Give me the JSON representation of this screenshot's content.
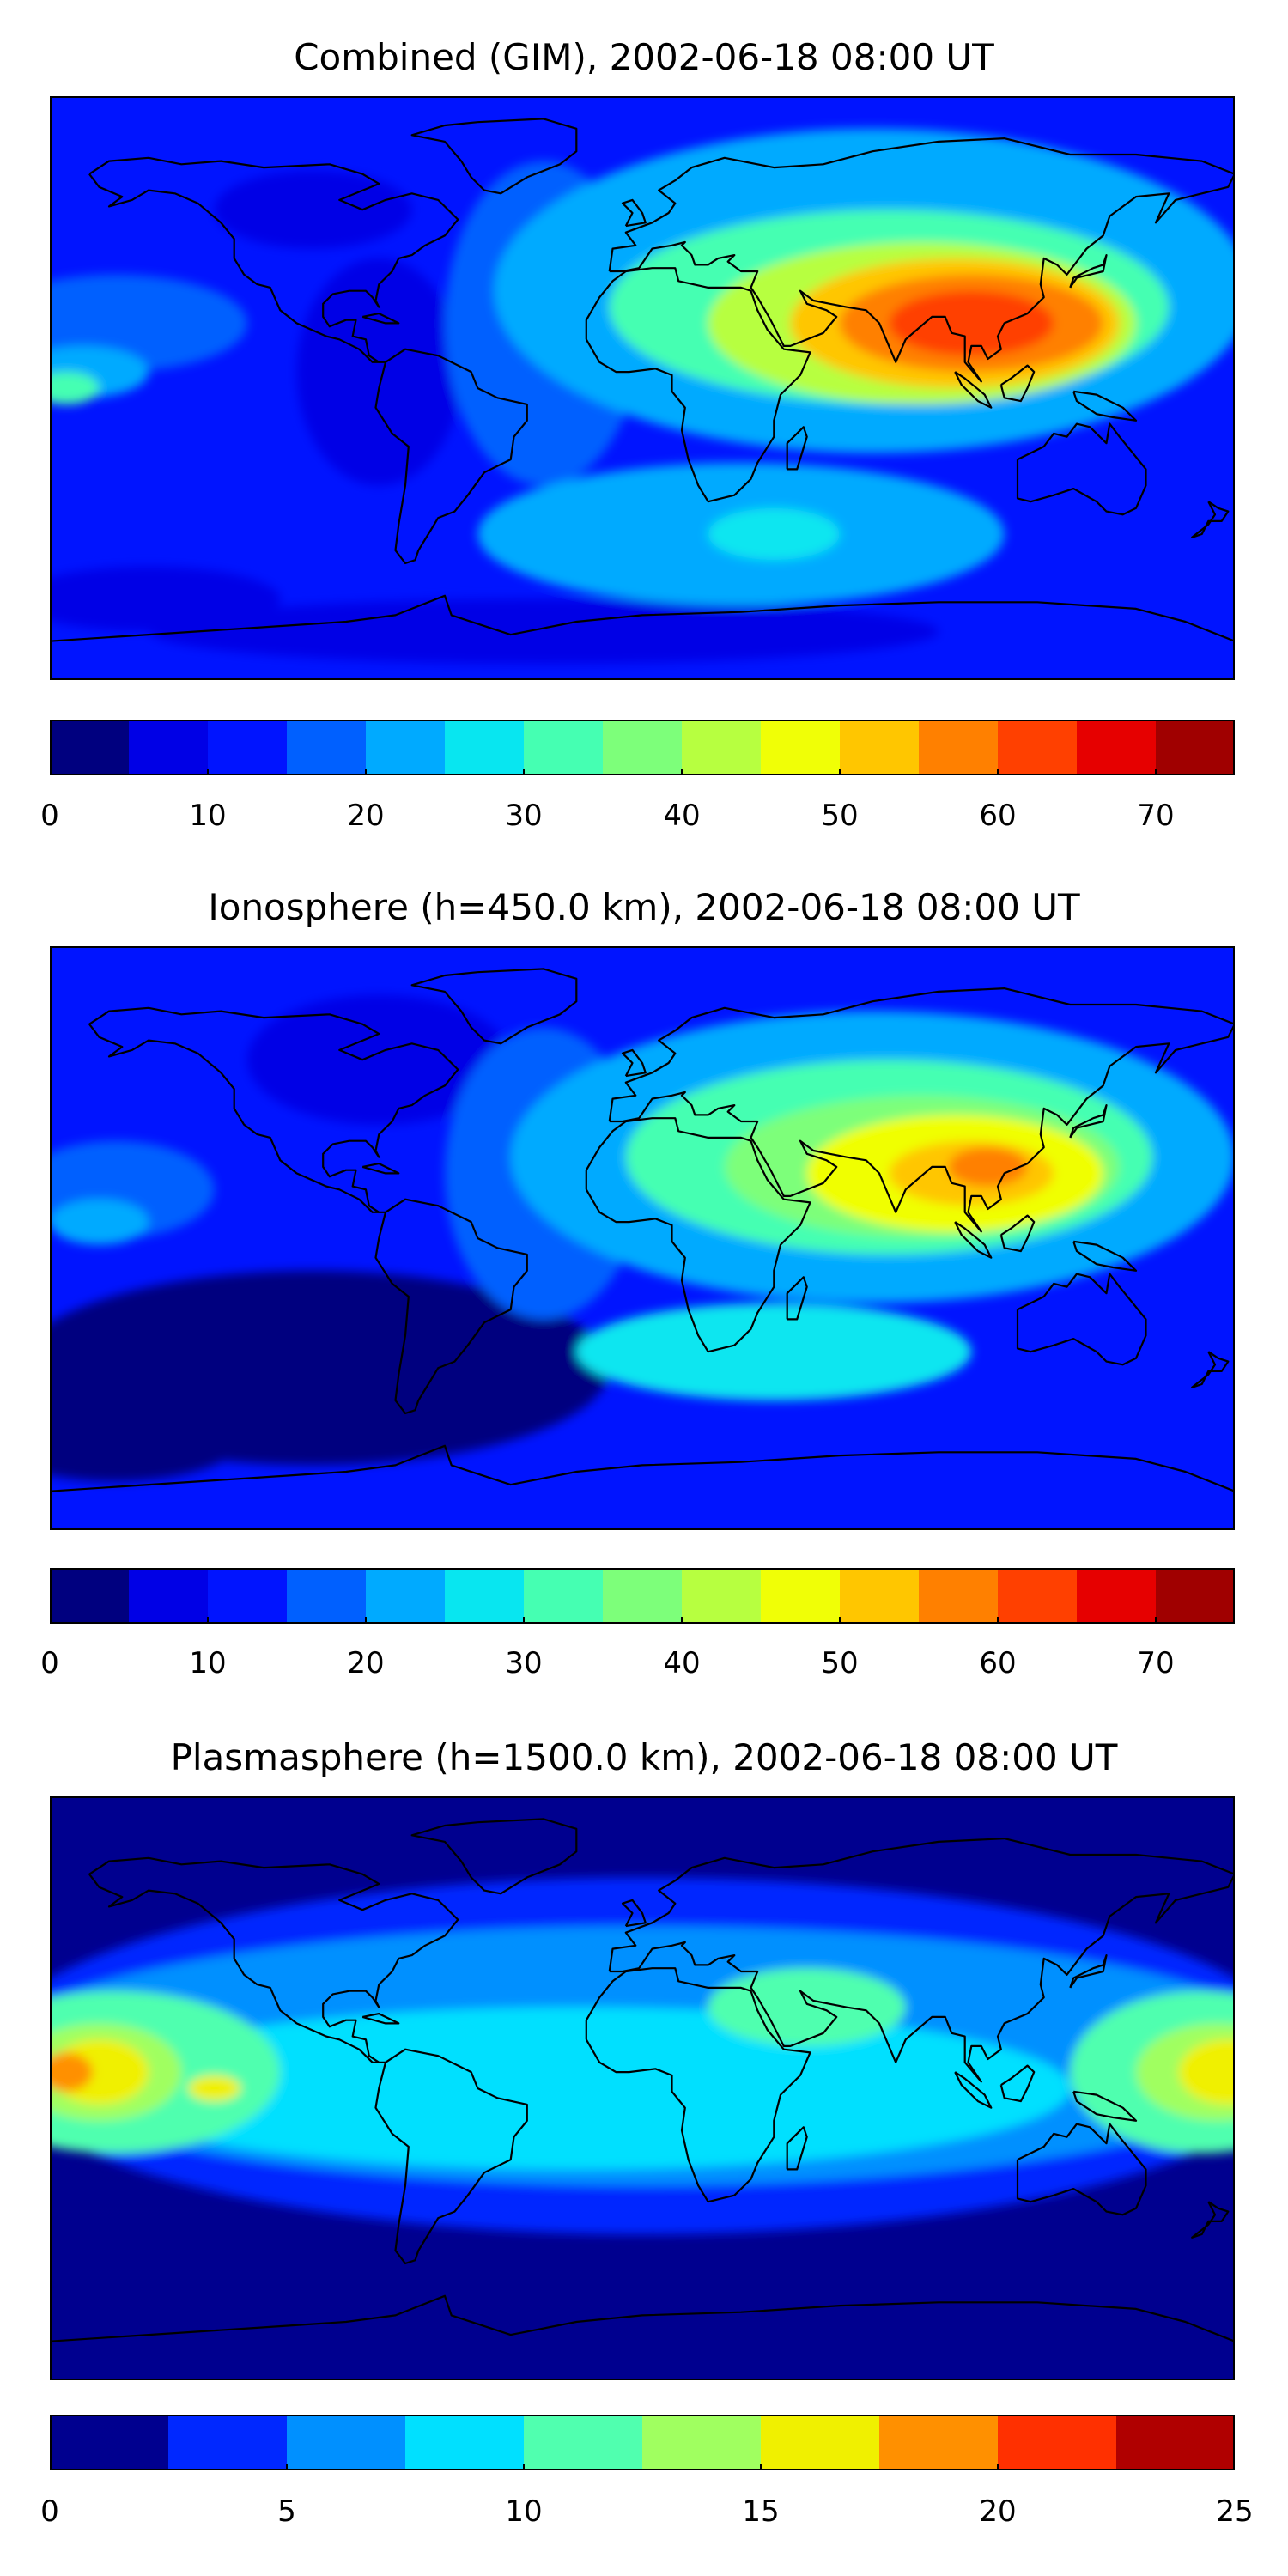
{
  "panels": [
    {
      "title": "Combined (GIM), 2002-06-18 08:00 UT",
      "colorbar": {
        "min": 0,
        "max": 75,
        "step": 5,
        "colors": [
          "#00007f",
          "#0000e6",
          "#0014ff",
          "#0060ff",
          "#00aaff",
          "#08e6f0",
          "#45ffb2",
          "#7dff7a",
          "#b7ff40",
          "#f0ff06",
          "#ffc600",
          "#ff8000",
          "#ff4000",
          "#e60000",
          "#a00000"
        ],
        "ticks": [
          "0",
          "10",
          "20",
          "30",
          "40",
          "50",
          "60",
          "70"
        ],
        "tick_values": [
          0,
          10,
          20,
          30,
          40,
          50,
          60,
          70
        ]
      },
      "field": {
        "background": "#0014ff",
        "blobs": [
          {
            "lon": -150,
            "lat": -65,
            "rx": 40,
            "ry": 10,
            "level": 1
          },
          {
            "lon": -30,
            "lat": -75,
            "rx": 120,
            "ry": 10,
            "level": 1
          },
          {
            "lon": -80,
            "lat": 5,
            "rx": 25,
            "ry": 35,
            "level": 1
          },
          {
            "lon": -100,
            "lat": 55,
            "rx": 30,
            "ry": 12,
            "level": 1
          },
          {
            "lon": -160,
            "lat": 20,
            "rx": 40,
            "ry": 15,
            "level": 3
          },
          {
            "lon": -170,
            "lat": 5,
            "rx": 20,
            "ry": 8,
            "level": 4
          },
          {
            "lon": -175,
            "lat": 0,
            "rx": 10,
            "ry": 5,
            "level": 6
          },
          {
            "lon": -30,
            "lat": 20,
            "rx": 30,
            "ry": 50,
            "level": 3
          },
          {
            "lon": 70,
            "lat": 30,
            "rx": 115,
            "ry": 50,
            "level": 4
          },
          {
            "lon": 30,
            "lat": -45,
            "rx": 80,
            "ry": 22,
            "level": 4
          },
          {
            "lon": 40,
            "lat": -45,
            "rx": 20,
            "ry": 8,
            "level": 5
          },
          {
            "lon": 75,
            "lat": 25,
            "rx": 85,
            "ry": 30,
            "level": 6
          },
          {
            "lon": 85,
            "lat": 20,
            "rx": 65,
            "ry": 25,
            "level": 8
          },
          {
            "lon": 95,
            "lat": 20,
            "rx": 50,
            "ry": 20,
            "level": 10
          },
          {
            "lon": 100,
            "lat": 20,
            "rx": 40,
            "ry": 15,
            "level": 11
          },
          {
            "lon": 100,
            "lat": 20,
            "rx": 25,
            "ry": 10,
            "level": 12
          }
        ]
      }
    },
    {
      "title": "Ionosphere  (h=450.0 km), 2002-06-18 08:00 UT",
      "colorbar": {
        "min": 0,
        "max": 75,
        "step": 5,
        "colors": [
          "#00007f",
          "#0000e6",
          "#0014ff",
          "#0060ff",
          "#00aaff",
          "#08e6f0",
          "#45ffb2",
          "#7dff7a",
          "#b7ff40",
          "#f0ff06",
          "#ffc600",
          "#ff8000",
          "#ff4000",
          "#e60000",
          "#a00000"
        ],
        "ticks": [
          "0",
          "10",
          "20",
          "30",
          "40",
          "50",
          "60",
          "70"
        ],
        "tick_values": [
          0,
          10,
          20,
          30,
          40,
          50,
          60,
          70
        ]
      },
      "field": {
        "background": "#0014ff",
        "blobs": [
          {
            "lon": -100,
            "lat": -40,
            "rx": 90,
            "ry": 30,
            "level": 0
          },
          {
            "lon": -160,
            "lat": -60,
            "rx": 40,
            "ry": 15,
            "level": 0
          },
          {
            "lon": -80,
            "lat": 55,
            "rx": 40,
            "ry": 20,
            "level": 1
          },
          {
            "lon": -160,
            "lat": 15,
            "rx": 30,
            "ry": 15,
            "level": 3
          },
          {
            "lon": -165,
            "lat": 5,
            "rx": 15,
            "ry": 7,
            "level": 4
          },
          {
            "lon": -30,
            "lat": 20,
            "rx": 30,
            "ry": 45,
            "level": 3
          },
          {
            "lon": 70,
            "lat": 25,
            "rx": 110,
            "ry": 45,
            "level": 4
          },
          {
            "lon": 40,
            "lat": -35,
            "rx": 60,
            "ry": 15,
            "level": 5
          },
          {
            "lon": 75,
            "lat": 25,
            "rx": 80,
            "ry": 30,
            "level": 6
          },
          {
            "lon": 85,
            "lat": 22,
            "rx": 60,
            "ry": 22,
            "level": 7
          },
          {
            "lon": 95,
            "lat": 20,
            "rx": 45,
            "ry": 18,
            "level": 9
          },
          {
            "lon": 100,
            "lat": 20,
            "rx": 25,
            "ry": 10,
            "level": 10
          },
          {
            "lon": 105,
            "lat": 22,
            "rx": 12,
            "ry": 6,
            "level": 11
          }
        ]
      }
    },
    {
      "title": "Plasmasphere (h=1500.0 km), 2002-06-18 08:00 UT",
      "colorbar": {
        "min": 0,
        "max": 25,
        "step": 2.5,
        "colors": [
          "#00008f",
          "#0028ff",
          "#0090ff",
          "#00e0ff",
          "#50ffaf",
          "#a0ff60",
          "#f0f000",
          "#ff9000",
          "#ff3000",
          "#b00000"
        ],
        "ticks": [
          "0",
          "5",
          "10",
          "15",
          "20",
          "25"
        ],
        "tick_values": [
          0,
          5,
          10,
          15,
          20,
          25
        ]
      },
      "field": {
        "background": "#00008f",
        "blobs": [
          {
            "lon": 0,
            "lat": 10,
            "rx": 200,
            "ry": 55,
            "level": 1
          },
          {
            "lon": 0,
            "lat": 10,
            "rx": 200,
            "ry": 40,
            "level": 2
          },
          {
            "lon": -20,
            "lat": 0,
            "rx": 150,
            "ry": 25,
            "level": 3
          },
          {
            "lon": -160,
            "lat": 5,
            "rx": 50,
            "ry": 25,
            "level": 4
          },
          {
            "lon": 170,
            "lat": 5,
            "rx": 40,
            "ry": 25,
            "level": 4
          },
          {
            "lon": 50,
            "lat": 25,
            "rx": 30,
            "ry": 12,
            "level": 4
          },
          {
            "lon": -165,
            "lat": 5,
            "rx": 25,
            "ry": 15,
            "level": 5
          },
          {
            "lon": 175,
            "lat": 5,
            "rx": 25,
            "ry": 15,
            "level": 5
          },
          {
            "lon": -165,
            "lat": 5,
            "rx": 15,
            "ry": 10,
            "level": 6
          },
          {
            "lon": 178,
            "lat": 5,
            "rx": 15,
            "ry": 10,
            "level": 6
          },
          {
            "lon": -175,
            "lat": 5,
            "rx": 8,
            "ry": 6,
            "level": 7
          },
          {
            "lon": -130,
            "lat": 0,
            "rx": 8,
            "ry": 4,
            "level": 6
          }
        ]
      }
    }
  ]
}
